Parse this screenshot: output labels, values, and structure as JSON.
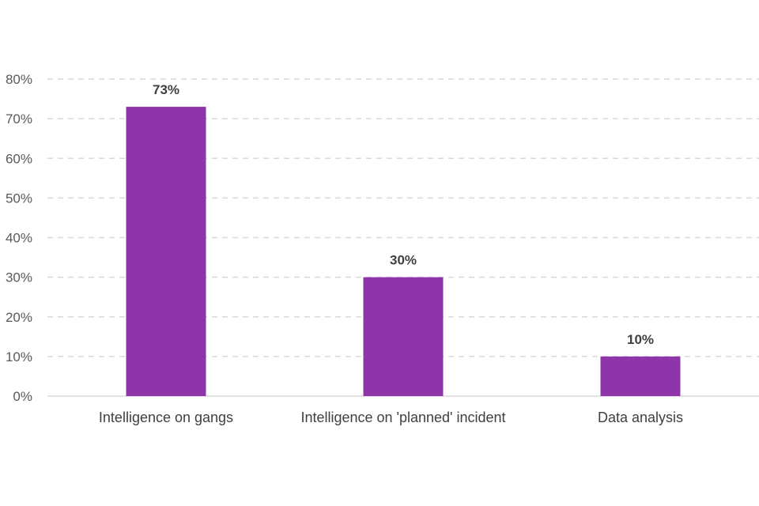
{
  "chart_data": {
    "type": "bar",
    "categories": [
      "Intelligence on gangs",
      "Intelligence on 'planned' incident",
      "Data analysis"
    ],
    "values": [
      73,
      30,
      10
    ],
    "data_labels": [
      "73%",
      "30%",
      "10%"
    ],
    "ylim": [
      0,
      80
    ],
    "yticks": [
      0,
      10,
      20,
      30,
      40,
      50,
      60,
      70,
      80
    ],
    "ytick_labels": [
      "0%",
      "10%",
      "20%",
      "30%",
      "40%",
      "50%",
      "60%",
      "70%",
      "80%"
    ],
    "grid": true,
    "bar_color": "#8e35aa",
    "title": "",
    "xlabel": "",
    "ylabel": ""
  }
}
